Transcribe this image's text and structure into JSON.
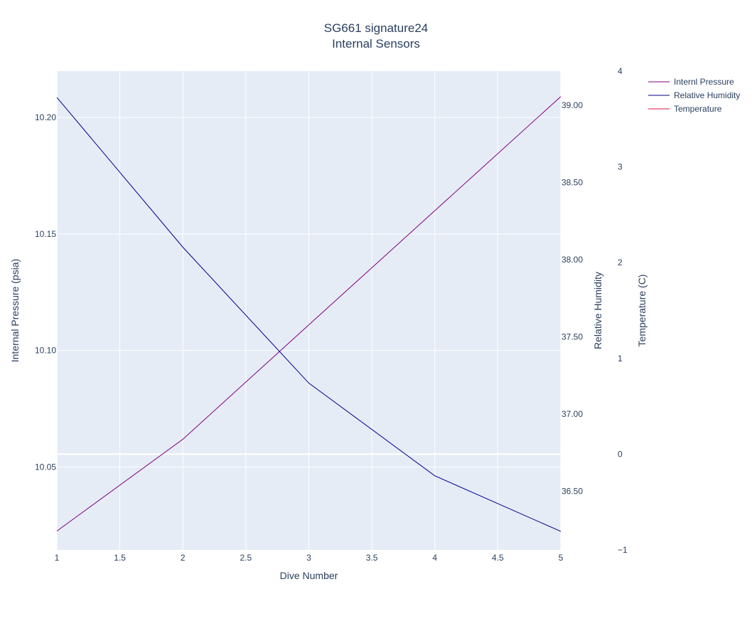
{
  "chart_data": {
    "type": "line",
    "title": [
      "SG661 signature24",
      "Internal Sensors"
    ],
    "xlabel": "Dive Number",
    "xlim": [
      1,
      5
    ],
    "x_ticks": [
      "1",
      "1.5",
      "2",
      "2.5",
      "3",
      "3.5",
      "4",
      "4.5",
      "5"
    ],
    "x_tick_values": [
      1,
      1.5,
      2,
      2.5,
      3,
      3.5,
      4,
      4.5,
      5
    ],
    "axes": {
      "y_left": {
        "label": "Internal Pressure (psia)",
        "range": [
          10.0144,
          10.2199
        ],
        "ticks": [
          "10.05",
          "10.10",
          "10.15",
          "10.20"
        ],
        "tick_values": [
          10.05,
          10.1,
          10.15,
          10.2
        ]
      },
      "y_right1": {
        "label": "Relative Humidity",
        "range": [
          36.12,
          39.22
        ],
        "ticks": [
          "36.50",
          "37.00",
          "37.50",
          "38.00",
          "38.50",
          "39.00"
        ],
        "tick_values": [
          36.5,
          37.0,
          37.5,
          38.0,
          38.5,
          39.0
        ]
      },
      "y_right2": {
        "label": "Temperature (C)",
        "range": [
          -1,
          4
        ],
        "ticks": [
          "−1",
          "0",
          "1",
          "2",
          "3",
          "4"
        ],
        "tick_values": [
          -1,
          0,
          1,
          2,
          3,
          4
        ]
      }
    },
    "series": [
      {
        "name": "Internl Pressure",
        "axis": "y_left",
        "color": "#800080",
        "x": [
          1,
          2,
          3,
          4,
          5
        ],
        "values": [
          10.0225,
          10.0619,
          10.111,
          10.16,
          10.209
        ]
      },
      {
        "name": "Relative Humidity",
        "axis": "y_right1",
        "color": "#00008b",
        "x": [
          1,
          2,
          3,
          4,
          5
        ],
        "values": [
          39.05,
          38.08,
          37.2,
          36.6,
          36.24
        ]
      },
      {
        "name": "Temperature",
        "axis": "y_right2",
        "color": "#dc143c",
        "x": [
          1,
          2,
          3,
          4,
          5
        ],
        "values": [
          0,
          0,
          0,
          0,
          0
        ]
      }
    ],
    "grid": true,
    "legend_position": "top-right",
    "plot_background": "#e5ecf6",
    "grid_color": "#ffffff"
  }
}
